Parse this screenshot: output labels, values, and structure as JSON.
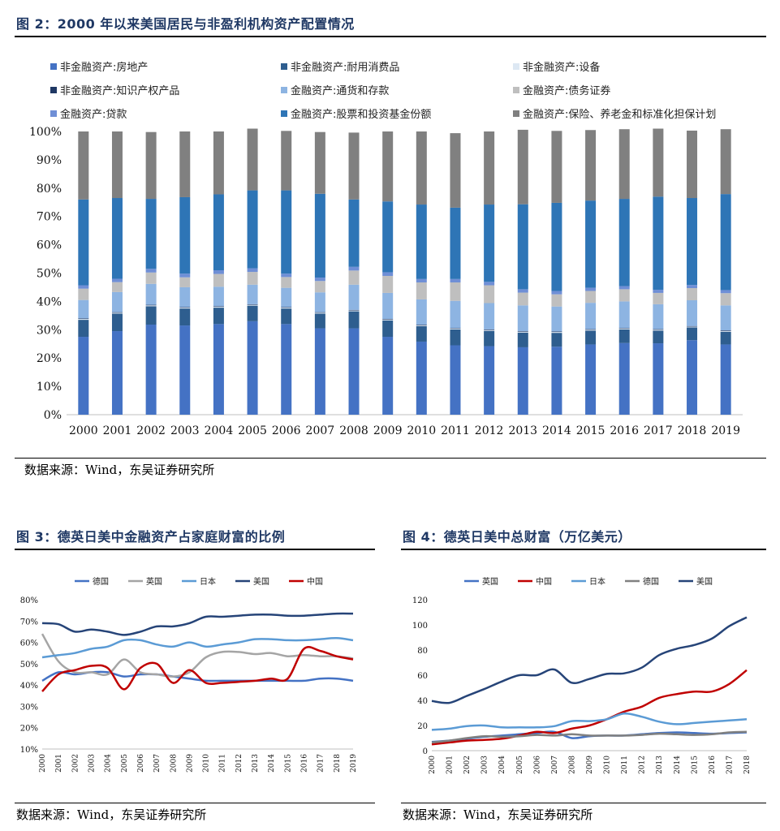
{
  "figure2": {
    "title": "图 2：2000 年以来美国居民与非盈利机构资产配置情况",
    "source": "数据来源：Wind，东吴证券研究所"
  },
  "figure3": {
    "title": "图 3：德英日美中金融资产占家庭财富的比例",
    "source": "数据来源：Wind，东吴证券研究所"
  },
  "figure4": {
    "title": "图 4：德英日美中总财富（万亿美元）",
    "source": "数据来源：Wind，东吴证券研究所"
  },
  "chart_data": [
    {
      "type": "bar",
      "stacked": true,
      "categories": [
        "2000",
        "2001",
        "2002",
        "2003",
        "2004",
        "2005",
        "2006",
        "2007",
        "2008",
        "2009",
        "2010",
        "2011",
        "2012",
        "2013",
        "2014",
        "2015",
        "2016",
        "2017",
        "2018",
        "2019"
      ],
      "ylim": [
        0,
        100
      ],
      "yticks": [
        "0%",
        "10%",
        "20%",
        "30%",
        "40%",
        "50%",
        "60%",
        "70%",
        "80%",
        "90%",
        "100%"
      ],
      "legend_position": "top",
      "series": [
        {
          "name": "非金融资产:房地产",
          "color": "#4472c4",
          "values": [
            27.5,
            29.5,
            31.8,
            31.5,
            32,
            33,
            32,
            30.5,
            30.5,
            27.5,
            25.8,
            24.5,
            24.2,
            23.8,
            24.0,
            24.8,
            25.3,
            25.2,
            26.3,
            24.8
          ]
        },
        {
          "name": "非金融资产:耐用消费品",
          "color": "#2e5e8f",
          "values": [
            6,
            6.2,
            6.5,
            6,
            5.8,
            5.5,
            5.5,
            5.2,
            6,
            5.8,
            5.5,
            5.6,
            5.4,
            5.2,
            4.9,
            4.9,
            4.8,
            4.5,
            4.5,
            4.5
          ]
        },
        {
          "name": "非金融资产:设备",
          "color": "#dde8f3",
          "values": [
            0.3,
            0.3,
            0.3,
            0.3,
            0.3,
            0.3,
            0.3,
            0.3,
            0.3,
            0.3,
            0.3,
            0.3,
            0.3,
            0.3,
            0.3,
            0.3,
            0.3,
            0.3,
            0.3,
            0.3
          ]
        },
        {
          "name": "非金融资产:知识产权产品",
          "color": "#1f3864",
          "values": [
            0.2,
            0.2,
            0.2,
            0.2,
            0.2,
            0.2,
            0.2,
            0.2,
            0.2,
            0.2,
            0.2,
            0.2,
            0.2,
            0.2,
            0.2,
            0.2,
            0.2,
            0.2,
            0.2,
            0.2
          ]
        },
        {
          "name": "金融资产:通货和存款",
          "color": "#8db4e2",
          "values": [
            6.5,
            7.1,
            7.4,
            7.0,
            6.9,
            6.9,
            6.8,
            7.0,
            8.9,
            9.2,
            8.9,
            9.6,
            9.3,
            9.1,
            8.8,
            9.3,
            9.4,
            8.8,
            9.1,
            8.8
          ]
        },
        {
          "name": "金融资产:债务证券",
          "color": "#bfbfbf",
          "values": [
            4,
            3.5,
            4,
            3.5,
            4.5,
            4.5,
            3.8,
            4,
            5,
            6,
            6,
            6.5,
            6.3,
            4.5,
            4.3,
            4.2,
            4.3,
            4.0,
            4.3,
            4.3
          ]
        },
        {
          "name": "金融资产:贷款",
          "color": "#6f8fd6",
          "values": [
            1.2,
            1.2,
            1.3,
            1.3,
            1.3,
            1.3,
            1.2,
            1.2,
            1.3,
            1.3,
            1.2,
            1.2,
            1.2,
            1.2,
            1.2,
            1.1,
            1.1,
            1.1,
            1.1,
            1.1
          ]
        },
        {
          "name": "金融资产:股票和投资基金份额",
          "color": "#2e75b6",
          "values": [
            30.3,
            28.5,
            24.7,
            27.0,
            26.8,
            27.5,
            29.4,
            29.6,
            23.8,
            25.0,
            26.3,
            25.2,
            27.3,
            30.0,
            31.1,
            30.8,
            30.8,
            32.9,
            30.7,
            33.9
          ]
        },
        {
          "name": "金融资产:保险、养老金和标准化担保计划",
          "color": "#808080",
          "values": [
            24,
            23.5,
            23.6,
            23.2,
            22.2,
            21.8,
            21.0,
            21.8,
            23.6,
            24.7,
            25.8,
            26.3,
            25.8,
            26.3,
            25.4,
            24.9,
            24.6,
            24.0,
            23.8,
            22.9
          ]
        }
      ]
    },
    {
      "type": "line",
      "x": [
        "2000",
        "2001",
        "2002",
        "2003",
        "2004",
        "2005",
        "2006",
        "2007",
        "2008",
        "2009",
        "2010",
        "2011",
        "2012",
        "2013",
        "2014",
        "2015",
        "2016",
        "2017",
        "2018",
        "2019"
      ],
      "ylim": [
        0.1,
        0.8
      ],
      "yticks": [
        "10%",
        "20%",
        "30%",
        "40%",
        "50%",
        "60%",
        "70%",
        "80%"
      ],
      "legend_position": "top",
      "series": [
        {
          "name": "德国",
          "color": "#4472c4",
          "values": [
            0.42,
            0.46,
            0.45,
            0.46,
            0.46,
            0.44,
            0.45,
            0.45,
            0.44,
            0.43,
            0.42,
            0.42,
            0.42,
            0.42,
            0.42,
            0.42,
            0.42,
            0.43,
            0.43,
            0.42
          ]
        },
        {
          "name": "英国",
          "color": "#a5a5a5",
          "values": [
            0.64,
            0.51,
            0.46,
            0.46,
            0.45,
            0.52,
            0.46,
            0.45,
            0.44,
            0.46,
            0.53,
            0.555,
            0.555,
            0.545,
            0.55,
            0.535,
            0.54,
            0.535,
            0.535,
            0.525
          ]
        },
        {
          "name": "日本",
          "color": "#5b9bd5",
          "values": [
            0.53,
            0.54,
            0.55,
            0.57,
            0.58,
            0.61,
            0.61,
            0.59,
            0.58,
            0.6,
            0.58,
            0.59,
            0.6,
            0.615,
            0.615,
            0.61,
            0.61,
            0.615,
            0.62,
            0.61
          ]
        },
        {
          "name": "美国",
          "color": "#264478",
          "values": [
            0.69,
            0.685,
            0.65,
            0.66,
            0.65,
            0.635,
            0.65,
            0.675,
            0.675,
            0.69,
            0.72,
            0.72,
            0.725,
            0.73,
            0.73,
            0.725,
            0.725,
            0.73,
            0.735,
            0.735
          ]
        },
        {
          "name": "中国",
          "color": "#c00000",
          "values": [
            0.37,
            0.45,
            0.47,
            0.49,
            0.48,
            0.38,
            0.48,
            0.5,
            0.41,
            0.47,
            0.41,
            0.41,
            0.415,
            0.42,
            0.43,
            0.43,
            0.57,
            0.56,
            0.535,
            0.52
          ]
        }
      ]
    },
    {
      "type": "line",
      "x": [
        "2000",
        "2001",
        "2002",
        "2003",
        "2004",
        "2005",
        "2006",
        "2007",
        "2008",
        "2009",
        "2010",
        "2011",
        "2012",
        "2013",
        "2014",
        "2015",
        "2016",
        "2017",
        "2018"
      ],
      "ylim": [
        0,
        120
      ],
      "yticks": [
        "0",
        "20",
        "40",
        "60",
        "80",
        "100",
        "120"
      ],
      "legend_position": "top",
      "series": [
        {
          "name": "英国",
          "color": "#4472c4",
          "values": [
            7,
            8,
            9.5,
            11,
            12,
            13,
            14,
            15,
            10,
            11.5,
            12,
            12,
            13,
            14,
            14.5,
            14,
            13.5,
            14,
            14.5
          ]
        },
        {
          "name": "中国",
          "color": "#c00000",
          "values": [
            5,
            6.5,
            8,
            8.5,
            9.5,
            12,
            15,
            14,
            17.5,
            20,
            25,
            31,
            35,
            42,
            45,
            47,
            47,
            53,
            64
          ]
        },
        {
          "name": "日本",
          "color": "#5b9bd5",
          "values": [
            16.5,
            17.5,
            19.5,
            20,
            18.5,
            18.5,
            18.5,
            19.5,
            23.5,
            23.5,
            25,
            29.5,
            27,
            23,
            21,
            22,
            23,
            24,
            25
          ]
        },
        {
          "name": "德国",
          "color": "#808080",
          "values": [
            6.5,
            8,
            10,
            11.5,
            11,
            11.5,
            12.5,
            12,
            13,
            12,
            12,
            12,
            12.5,
            13.5,
            13,
            12.5,
            13,
            14.5,
            15
          ]
        },
        {
          "name": "美国",
          "color": "#264478",
          "values": [
            39.5,
            38,
            43.5,
            49,
            55,
            60,
            60,
            64.5,
            54,
            57,
            61,
            61.5,
            66,
            76,
            81,
            84,
            89,
            99,
            106
          ]
        }
      ]
    }
  ]
}
